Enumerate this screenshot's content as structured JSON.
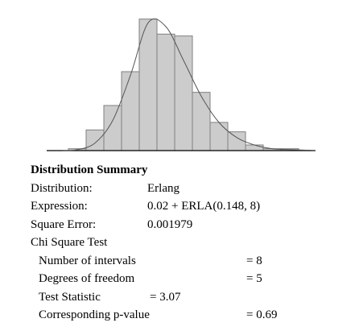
{
  "chart_data": {
    "type": "bar",
    "title": "",
    "xlabel": "",
    "ylabel": "",
    "values": [
      1,
      11,
      24,
      42,
      70,
      62,
      61,
      31,
      15,
      10,
      3,
      1,
      1
    ],
    "ylim": [
      0,
      75
    ],
    "fit_curve": {
      "name": "Erlang",
      "values": [
        0.5,
        4,
        16,
        40,
        68,
        66,
        48,
        29,
        15,
        7,
        3,
        1,
        0.5
      ]
    },
    "colors": {
      "bar_fill": "#cccccc",
      "bar_stroke": "#7f7f7f",
      "curve": "#555555",
      "axis": "#000000"
    }
  },
  "summary": {
    "title": "Distribution Summary",
    "distribution_label": "Distribution:",
    "distribution_value": "Erlang",
    "expression_label": "Expression:",
    "expression_value": "0.02 + ERLA(0.148, 8)",
    "square_error_label": "Square Error:",
    "square_error_value": "0.001979",
    "chi_title": "Chi Square Test",
    "intervals_label": "Number of intervals",
    "intervals_value": "= 8",
    "dof_label": "Degrees of freedom",
    "dof_value": "= 5",
    "test_stat_label": "Test Statistic",
    "test_stat_value": "= 3.07",
    "pvalue_label": "Corresponding p-value",
    "pvalue_value": "= 0.69"
  }
}
